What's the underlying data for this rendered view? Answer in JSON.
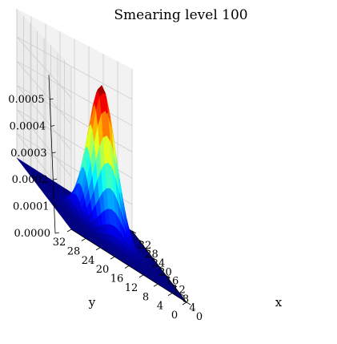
{
  "chart_data": {
    "type": "surface3d",
    "title": "Smearing level 100",
    "xlabel": "x",
    "ylabel": "y",
    "zlabel": "",
    "x_ticks": [
      0,
      4,
      8,
      12,
      16,
      20,
      24,
      28,
      32
    ],
    "y_ticks": [
      0,
      4,
      8,
      12,
      16,
      20,
      24,
      28,
      32
    ],
    "z_ticks": [
      "0.0000",
      "0.0001",
      "0.0002",
      "0.0003",
      "0.0004",
      "0.0005"
    ],
    "xlim": [
      0,
      32
    ],
    "ylim": [
      0,
      32
    ],
    "zlim": [
      0,
      0.00055
    ],
    "colormap": "jet",
    "grid": true,
    "surface": {
      "function": "gaussian",
      "center": [
        16,
        16
      ],
      "peak": 0.00055,
      "sigma": 3.5,
      "grid_size": 33
    },
    "colors": {
      "pane": "#f2f2f2",
      "pane_side": "#ececec",
      "gridline": "#cccccc"
    }
  }
}
